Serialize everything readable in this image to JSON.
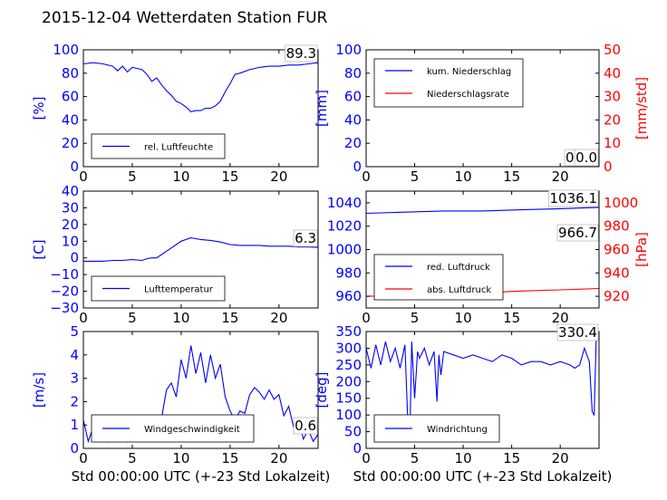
{
  "page_title": "2015-12-04 Wetterdaten Station FUR",
  "chart_data": [
    {
      "type": "line",
      "panel": "humidity",
      "ylabel": "[%]",
      "xlim": [
        0,
        24
      ],
      "ylim": [
        0,
        100
      ],
      "xticks": [
        "0",
        "5",
        "10",
        "15",
        "20"
      ],
      "yticks": [
        "0",
        "20",
        "40",
        "60",
        "80",
        "100"
      ],
      "series": [
        {
          "name": "rel. Luftfeuchte",
          "color": "#0000ff",
          "x": [
            0,
            1,
            2,
            3,
            3.5,
            4,
            4.5,
            5,
            5.5,
            6,
            6.5,
            7,
            7.5,
            8,
            8.5,
            9,
            9.5,
            10,
            10.5,
            11,
            11.5,
            12,
            12.5,
            13,
            13.5,
            14,
            14.5,
            15,
            15.5,
            16,
            17,
            18,
            19,
            20,
            21,
            22,
            23,
            24
          ],
          "y": [
            88,
            89,
            88,
            86,
            82,
            86,
            81,
            85,
            84,
            83,
            79,
            73,
            76,
            70,
            65,
            61,
            56,
            54,
            51,
            47,
            48,
            48,
            50,
            50,
            52,
            56,
            64,
            71,
            79,
            80,
            83,
            85,
            86,
            86,
            87,
            87,
            88,
            89
          ]
        }
      ],
      "current_value": "89.3",
      "legend": "lower-left"
    },
    {
      "type": "line",
      "panel": "precipitation",
      "ylabel": "[mm]",
      "ylabel_right": "[mm/std]",
      "xlim": [
        0,
        24
      ],
      "ylim": [
        0,
        100
      ],
      "ylim_right": [
        0,
        50
      ],
      "xticks": [
        "0",
        "5",
        "10",
        "15",
        "20"
      ],
      "yticks": [
        "0",
        "20",
        "40",
        "60",
        "80",
        "100"
      ],
      "yticks_right": [
        "0",
        "10",
        "20",
        "30",
        "40",
        "50"
      ],
      "series": [
        {
          "name": "kum. Niederschlag",
          "color": "#0000ff",
          "x": [
            0,
            24
          ],
          "y": [
            0,
            0
          ]
        },
        {
          "name": "Niederschlagsrate",
          "color": "#ff0000",
          "x": [
            0,
            24
          ],
          "y": [
            0,
            0
          ]
        }
      ],
      "current_value": "0.0",
      "current_value_right": "0.0",
      "legend": "upper-left"
    },
    {
      "type": "line",
      "panel": "temperature",
      "ylabel": "[C]",
      "xlim": [
        0,
        24
      ],
      "ylim": [
        -30,
        40
      ],
      "xticks": [
        "0",
        "5",
        "10",
        "15",
        "20"
      ],
      "yticks": [
        "−30",
        "−20",
        "−10",
        "0",
        "10",
        "20",
        "30",
        "40"
      ],
      "series": [
        {
          "name": "Lufttemperatur",
          "color": "#0000ff",
          "x": [
            0,
            1,
            2,
            3,
            4,
            5,
            6,
            6.5,
            7,
            7.5,
            8,
            8.5,
            9,
            9.5,
            10,
            10.5,
            11,
            11.5,
            12,
            13,
            14,
            15,
            16,
            17,
            18,
            19,
            20,
            21,
            22,
            23,
            24
          ],
          "y": [
            -2,
            -2,
            -2,
            -1.5,
            -1.5,
            -1,
            -1.5,
            -0.5,
            0,
            0,
            2,
            4,
            6,
            8,
            10,
            11,
            12,
            11.5,
            11,
            10.5,
            9.5,
            8,
            7.5,
            7.5,
            7.5,
            7,
            7,
            7,
            6.5,
            6.5,
            6.3
          ]
        }
      ],
      "current_value": "6.3",
      "legend": "lower-left"
    },
    {
      "type": "line",
      "panel": "pressure",
      "ylabel_right": "[hPa]",
      "xlim": [
        0,
        24
      ],
      "ylim": [
        950,
        1050
      ],
      "ylim_right": [
        910,
        1010
      ],
      "xticks": [
        "0",
        "5",
        "10",
        "15",
        "20"
      ],
      "yticks": [
        "960",
        "980",
        "1000",
        "1020",
        "1040"
      ],
      "yticks_right": [
        "920",
        "940",
        "960",
        "980",
        "1000"
      ],
      "series": [
        {
          "name": "red. Luftdruck",
          "color": "#0000ff",
          "x": [
            0,
            4,
            8,
            12,
            16,
            20,
            24
          ],
          "y": [
            1031,
            1032,
            1033,
            1033,
            1034,
            1035,
            1036.1
          ]
        },
        {
          "name": "abs. Luftdruck",
          "color": "#ff0000",
          "x": [
            0,
            4,
            8,
            12,
            16,
            20,
            24
          ],
          "y": [
            960,
            960.5,
            962,
            963,
            964.5,
            965.5,
            966.7
          ]
        }
      ],
      "current_value": "1036.1",
      "current_value_right": "966.7",
      "legend": "lower-left"
    },
    {
      "type": "line",
      "panel": "wind-speed",
      "ylabel": "[m/s]",
      "xlabel": "Std 00:00:00 UTC (+-23 Std Lokalzeit)",
      "xlim": [
        0,
        24
      ],
      "ylim": [
        0,
        5
      ],
      "xticks": [
        "0",
        "5",
        "10",
        "15",
        "20"
      ],
      "yticks": [
        "0",
        "1",
        "2",
        "3",
        "4",
        "5"
      ],
      "series": [
        {
          "name": "Windgeschwindigkeit",
          "color": "#0000ff",
          "x": [
            0,
            0.5,
            1,
            1.5,
            2,
            2.5,
            3,
            3.5,
            4,
            4.5,
            5,
            5.5,
            6,
            6.5,
            7,
            7.5,
            8,
            8.5,
            9,
            9.5,
            10,
            10.5,
            11,
            11.5,
            12,
            12.5,
            13,
            13.5,
            14,
            14.5,
            15,
            15.5,
            16,
            16.5,
            17,
            17.5,
            18,
            18.5,
            19,
            19.5,
            20,
            20.5,
            21,
            21.5,
            22,
            22.5,
            23,
            23.5,
            24
          ],
          "y": [
            1.2,
            0.3,
            0.9,
            0.4,
            1.1,
            0.3,
            1.0,
            0.5,
            0.9,
            0.3,
            1.2,
            0.6,
            1.1,
            0.4,
            0.9,
            0.5,
            1.3,
            2.5,
            2.8,
            2.2,
            3.8,
            3.0,
            4.4,
            3.2,
            4.1,
            2.8,
            4.0,
            3.0,
            3.6,
            2.2,
            1.6,
            1.2,
            1.6,
            1.5,
            2.3,
            2.6,
            2.4,
            2.1,
            2.5,
            2.1,
            2.3,
            1.4,
            1.8,
            0.9,
            1.2,
            0.4,
            0.8,
            0.3,
            0.6
          ]
        }
      ],
      "current_value": "0.6",
      "legend": "lower-left"
    },
    {
      "type": "line",
      "panel": "wind-direction",
      "ylabel": "[deg]",
      "xlabel": "Std 00:00:00 UTC (+-23 Std Lokalzeit)",
      "xlim": [
        0,
        24
      ],
      "ylim": [
        0,
        350
      ],
      "xticks": [
        "0",
        "5",
        "10",
        "15",
        "20"
      ],
      "yticks": [
        "0",
        "50",
        "100",
        "150",
        "200",
        "250",
        "300",
        "350"
      ],
      "series": [
        {
          "name": "Windrichtung",
          "color": "#0000ff",
          "x": [
            0,
            0.5,
            1,
            1.5,
            2,
            2.5,
            3,
            3.5,
            4,
            4.3,
            4.5,
            4.7,
            5,
            5.3,
            5.5,
            6,
            6.5,
            7,
            7.3,
            7.5,
            7.7,
            8,
            9,
            10,
            11,
            12,
            13,
            14,
            15,
            16,
            17,
            18,
            19,
            20,
            21,
            21.5,
            22,
            22.5,
            23,
            23.3,
            23.5,
            23.7,
            24
          ],
          "y": [
            300,
            240,
            310,
            250,
            320,
            260,
            300,
            240,
            310,
            80,
            20,
            320,
            150,
            290,
            270,
            300,
            250,
            290,
            140,
            280,
            220,
            290,
            280,
            270,
            280,
            270,
            260,
            280,
            270,
            250,
            260,
            260,
            250,
            260,
            250,
            240,
            250,
            300,
            260,
            110,
            100,
            320,
            330.4
          ]
        }
      ],
      "current_value": "330.4",
      "legend": "lower-left"
    }
  ]
}
